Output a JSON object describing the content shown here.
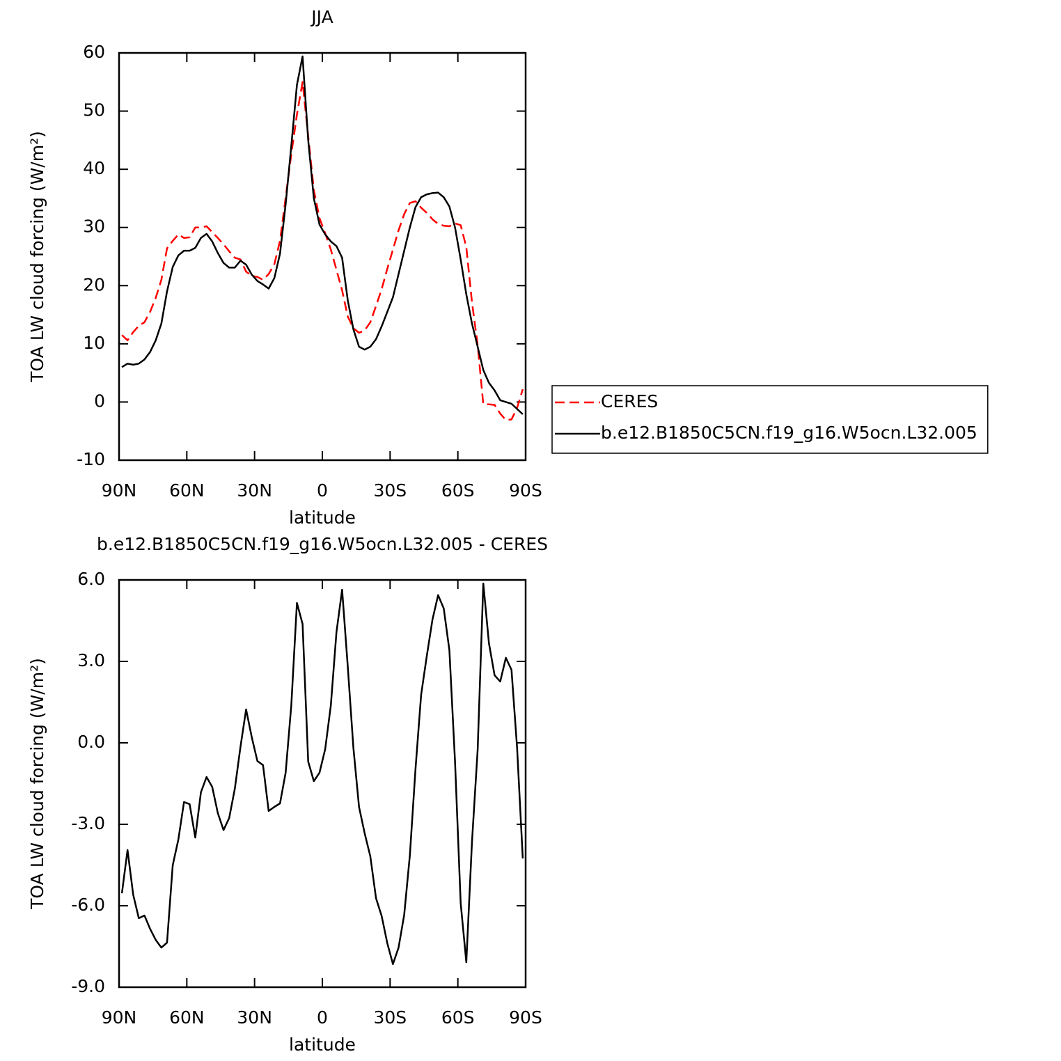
{
  "chart_data": [
    {
      "type": "line",
      "title": "JJA",
      "xlabel": "latitude",
      "ylabel": "TOA LW cloud forcing (W/m²)",
      "x": [
        88.75,
        86.25,
        83.75,
        81.25,
        78.75,
        76.25,
        73.75,
        71.25,
        68.75,
        66.25,
        63.75,
        61.25,
        58.75,
        56.25,
        53.75,
        51.25,
        48.75,
        46.25,
        43.75,
        41.25,
        38.75,
        36.25,
        33.75,
        31.25,
        28.75,
        26.25,
        23.75,
        21.25,
        18.75,
        16.25,
        13.75,
        11.25,
        8.75,
        6.25,
        3.75,
        1.25,
        -1.25,
        -3.75,
        -6.25,
        -8.75,
        -11.25,
        -13.75,
        -16.25,
        -18.75,
        -21.25,
        -23.75,
        -26.25,
        -28.75,
        -31.25,
        -33.75,
        -36.25,
        -38.75,
        -41.25,
        -43.75,
        -46.25,
        -48.75,
        -51.25,
        -53.75,
        -56.25,
        -58.75,
        -61.25,
        -63.75,
        -66.25,
        -68.75,
        -71.25,
        -73.75,
        -76.25,
        -78.75,
        -81.25,
        -83.75,
        -86.25,
        -88.75
      ],
      "xlim": [
        90,
        -90
      ],
      "xticks": [
        {
          "value": 90,
          "label": "90N"
        },
        {
          "value": 60,
          "label": "60N"
        },
        {
          "value": 30,
          "label": "30N"
        },
        0,
        {
          "value": -30,
          "label": "30S"
        },
        {
          "value": -60,
          "label": "60S"
        },
        {
          "value": -90,
          "label": "90S"
        }
      ],
      "ylim": [
        -10,
        60
      ],
      "yticks": [
        -10,
        0,
        10,
        20,
        30,
        40,
        50,
        60
      ],
      "legend": "right",
      "series": [
        {
          "name": "CERES",
          "color": "#ff0000",
          "line_style": "dashed",
          "values": [
            11.5,
            10.6,
            12.0,
            13.1,
            13.7,
            15.5,
            17.9,
            21.0,
            26.4,
            27.7,
            28.8,
            28.2,
            28.3,
            30.0,
            30.0,
            30.2,
            29.2,
            28.2,
            27.1,
            25.9,
            24.8,
            24.5,
            22.4,
            21.7,
            21.5,
            21.0,
            22.0,
            23.7,
            27.7,
            35.1,
            42.6,
            49.4,
            55.0,
            45.7,
            36.4,
            31.6,
            29.0,
            26.2,
            22.7,
            19.2,
            14.7,
            12.7,
            11.9,
            12.3,
            13.7,
            16.5,
            19.4,
            22.9,
            26.2,
            29.5,
            32.3,
            34.2,
            34.5,
            33.4,
            32.5,
            31.4,
            30.6,
            30.3,
            30.2,
            30.7,
            30.4,
            26.6,
            17.2,
            9.8,
            -0.4,
            -0.4,
            -0.5,
            -2.0,
            -3.1,
            -3.0,
            -1.0,
            2.2
          ]
        },
        {
          "name": "b.e12.B1850C5CN.f19_g16.W5ocn.L32.005",
          "color": "#000000",
          "line_style": "solid",
          "values": [
            6.0,
            6.6,
            6.4,
            6.6,
            7.3,
            8.6,
            10.6,
            13.5,
            19.0,
            23.2,
            25.2,
            26.0,
            26.0,
            26.5,
            28.2,
            28.9,
            27.6,
            25.6,
            23.9,
            23.1,
            23.1,
            24.3,
            23.6,
            21.9,
            20.8,
            20.2,
            19.5,
            21.3,
            25.5,
            34.0,
            44.0,
            54.5,
            59.4,
            45.0,
            35.0,
            30.5,
            28.8,
            27.6,
            26.8,
            24.8,
            17.5,
            12.5,
            9.5,
            9.0,
            9.5,
            10.8,
            13.0,
            15.5,
            18.0,
            22.0,
            26.0,
            30.0,
            33.5,
            35.2,
            35.7,
            35.9,
            36.0,
            35.2,
            33.6,
            30.0,
            24.5,
            18.5,
            13.5,
            9.5,
            5.5,
            3.3,
            2.0,
            0.3,
            0.0,
            -0.3,
            -1.2,
            -2.1
          ]
        }
      ]
    },
    {
      "type": "line",
      "title": "b.e12.B1850C5CN.f19_g16.W5ocn.L32.005 - CERES",
      "xlabel": "latitude",
      "ylabel": "TOA LW cloud forcing (W/m²)",
      "x": [
        88.75,
        86.25,
        83.75,
        81.25,
        78.75,
        76.25,
        73.75,
        71.25,
        68.75,
        66.25,
        63.75,
        61.25,
        58.75,
        56.25,
        53.75,
        51.25,
        48.75,
        46.25,
        43.75,
        41.25,
        38.75,
        36.25,
        33.75,
        31.25,
        28.75,
        26.25,
        23.75,
        21.25,
        18.75,
        16.25,
        13.75,
        11.25,
        8.75,
        6.25,
        3.75,
        1.25,
        -1.25,
        -3.75,
        -6.25,
        -8.75,
        -11.25,
        -13.75,
        -16.25,
        -18.75,
        -21.25,
        -23.75,
        -26.25,
        -28.75,
        -31.25,
        -33.75,
        -36.25,
        -38.75,
        -41.25,
        -43.75,
        -46.25,
        -48.75,
        -51.25,
        -53.75,
        -56.25,
        -58.75,
        -61.25,
        -63.75,
        -66.25,
        -68.75,
        -71.25,
        -73.75,
        -76.25,
        -78.75,
        -81.25,
        -83.75,
        -86.25,
        -88.75
      ],
      "xlim": [
        90,
        -90
      ],
      "xticks": [
        {
          "value": 90,
          "label": "90N"
        },
        {
          "value": 60,
          "label": "60N"
        },
        {
          "value": 30,
          "label": "30N"
        },
        0,
        {
          "value": -30,
          "label": "30S"
        },
        {
          "value": -60,
          "label": "60S"
        },
        {
          "value": -90,
          "label": "90S"
        }
      ],
      "ylim": [
        -9,
        6
      ],
      "yticks": [
        {
          "value": -9,
          "label": "-9.0"
        },
        {
          "value": -6,
          "label": "-6.0"
        },
        {
          "value": -3,
          "label": "-3.0"
        },
        {
          "value": 0,
          "label": "0.0"
        },
        {
          "value": 3,
          "label": "3.0"
        },
        {
          "value": 6,
          "label": "6.0"
        }
      ],
      "color": "#000000",
      "values": [
        -5.54,
        -3.95,
        -5.59,
        -6.46,
        -6.36,
        -6.85,
        -7.26,
        -7.54,
        -7.36,
        -4.51,
        -3.56,
        -2.18,
        -2.26,
        -3.49,
        -1.82,
        -1.26,
        -1.62,
        -2.59,
        -3.21,
        -2.77,
        -1.69,
        -0.15,
        1.23,
        0.21,
        -0.67,
        -0.82,
        -2.51,
        -2.36,
        -2.23,
        -1.1,
        1.38,
        5.15,
        4.38,
        -0.69,
        -1.41,
        -1.1,
        -0.23,
        1.38,
        4.08,
        5.64,
        2.82,
        -0.18,
        -2.36,
        -3.33,
        -4.18,
        -5.72,
        -6.38,
        -7.38,
        -8.15,
        -7.54,
        -6.33,
        -4.15,
        -0.97,
        1.77,
        3.21,
        4.54,
        5.44,
        4.95,
        3.41,
        -0.69,
        -5.9,
        -8.08,
        -3.67,
        -0.26,
        5.87,
        3.67,
        2.49,
        2.26,
        3.13,
        2.69,
        -0.21,
        -4.26
      ]
    }
  ]
}
